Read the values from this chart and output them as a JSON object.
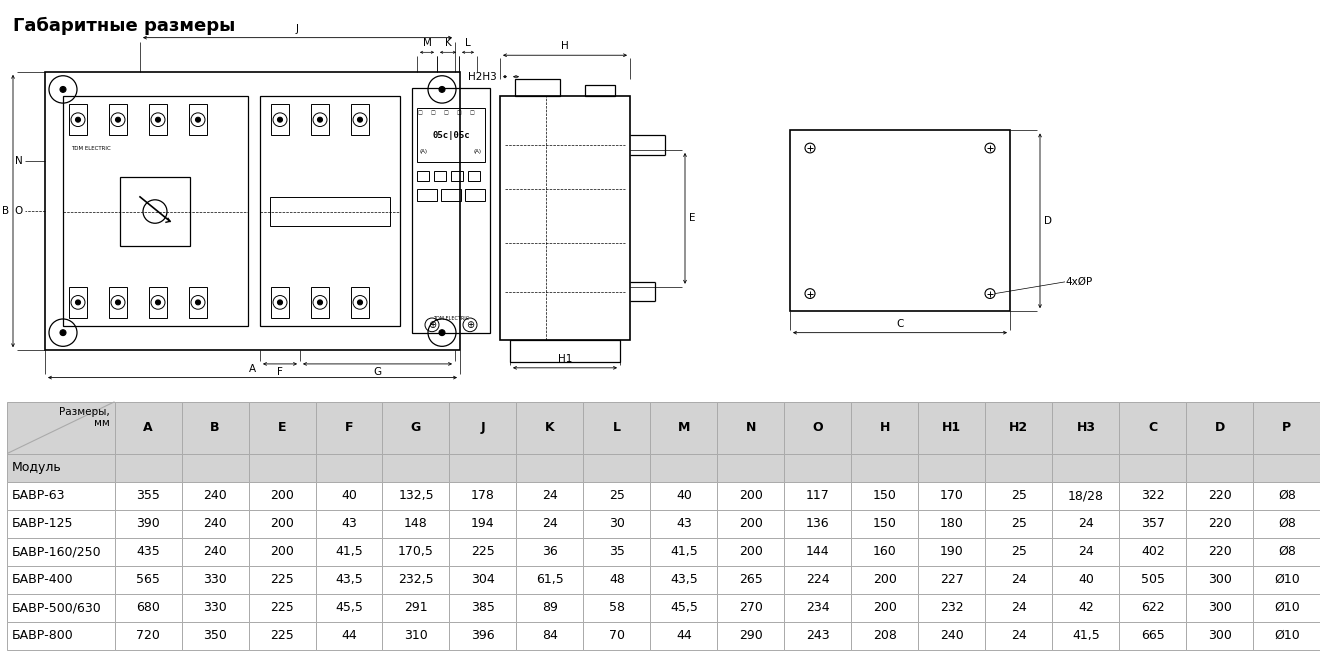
{
  "title": "Габаритные размеры",
  "col_headers": [
    "A",
    "B",
    "E",
    "F",
    "G",
    "J",
    "K",
    "L",
    "M",
    "N",
    "O",
    "H",
    "H1",
    "H2",
    "H3",
    "C",
    "D",
    "P"
  ],
  "rows": [
    [
      "БАВР-63",
      "355",
      "240",
      "200",
      "40",
      "132,5",
      "178",
      "24",
      "25",
      "40",
      "200",
      "117",
      "150",
      "170",
      "25",
      "18/28",
      "322",
      "220",
      "Ø8"
    ],
    [
      "БАВР-125",
      "390",
      "240",
      "200",
      "43",
      "148",
      "194",
      "24",
      "30",
      "43",
      "200",
      "136",
      "150",
      "180",
      "25",
      "24",
      "357",
      "220",
      "Ø8"
    ],
    [
      "БАВР-160/250",
      "435",
      "240",
      "200",
      "41,5",
      "170,5",
      "225",
      "36",
      "35",
      "41,5",
      "200",
      "144",
      "160",
      "190",
      "25",
      "24",
      "402",
      "220",
      "Ø8"
    ],
    [
      "БАВР-400",
      "565",
      "330",
      "225",
      "43,5",
      "232,5",
      "304",
      "61,5",
      "48",
      "43,5",
      "265",
      "224",
      "200",
      "227",
      "24",
      "40",
      "505",
      "300",
      "Ø10"
    ],
    [
      "БАВР-500/630",
      "680",
      "330",
      "225",
      "45,5",
      "291",
      "385",
      "89",
      "58",
      "45,5",
      "270",
      "234",
      "200",
      "232",
      "24",
      "42",
      "622",
      "300",
      "Ø10"
    ],
    [
      "БАВР-800",
      "720",
      "350",
      "225",
      "44",
      "310",
      "396",
      "84",
      "70",
      "44",
      "290",
      "243",
      "208",
      "240",
      "24",
      "41,5",
      "665",
      "300",
      "Ø10"
    ]
  ],
  "header_bg": "#d3d3d3",
  "row_bg_white": "#ffffff",
  "row_bg_gray": "#e8e8e8",
  "table_border": "#aaaaaa",
  "bg_color": "#ffffff",
  "title_fontsize": 13,
  "table_fontsize": 9
}
